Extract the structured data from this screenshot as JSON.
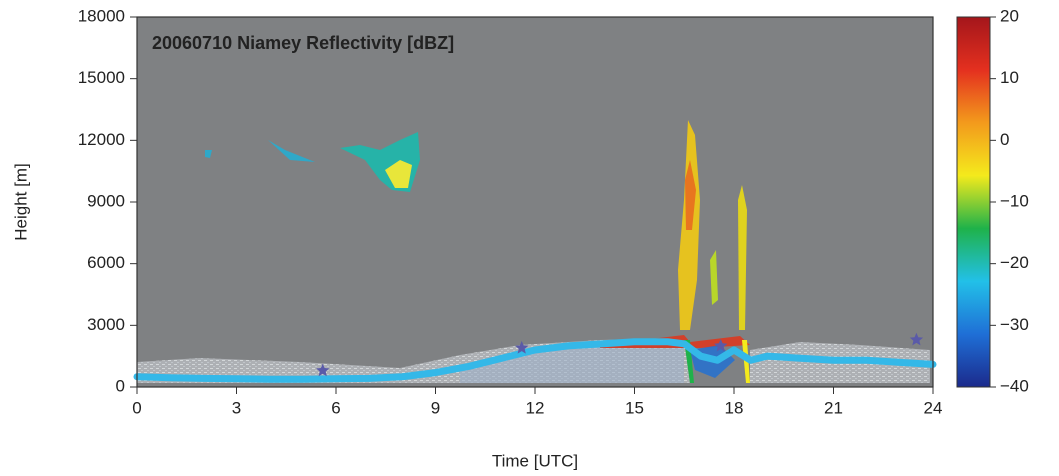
{
  "chart_data": {
    "type": "heatmap",
    "title": "20060710 Niamey Reflectivity [dBZ]",
    "xlabel": "Time [UTC]",
    "ylabel": "Height [m]",
    "xlim": [
      0,
      24
    ],
    "xticks": [
      0,
      3,
      6,
      9,
      12,
      15,
      18,
      21,
      24
    ],
    "ylim": [
      0,
      18000
    ],
    "yticks": [
      0,
      3000,
      6000,
      9000,
      12000,
      15000,
      18000
    ],
    "background": "#7f8183",
    "colorbar": {
      "lim": [
        -40,
        20
      ],
      "ticks": [
        {
          "value": -40,
          "label": "−40"
        },
        {
          "value": -30,
          "label": "−30"
        },
        {
          "value": -20,
          "label": "−20"
        },
        {
          "value": -10,
          "label": "−10"
        },
        0,
        10,
        20
      ],
      "colors": [
        "#1b2a8c",
        "#1f6fd6",
        "#22c0e8",
        "#1fb24a",
        "#f4ea1c",
        "#f39a1c",
        "#e4301f",
        "#a4161b"
      ]
    },
    "series": [
      {
        "type": "line",
        "color": "#34b8e8",
        "x": [
          0,
          1,
          2,
          3,
          4,
          5,
          6,
          7,
          8,
          9,
          10,
          11,
          12,
          13,
          14,
          15,
          16,
          16.5,
          17,
          17.5,
          18,
          18.5,
          19,
          20,
          21,
          22,
          23,
          24
        ],
        "values": [
          500,
          450,
          420,
          400,
          380,
          380,
          400,
          420,
          500,
          700,
          1000,
          1400,
          1800,
          2000,
          2100,
          2200,
          2200,
          2100,
          1500,
          1300,
          1800,
          1300,
          1500,
          1400,
          1300,
          1300,
          1200,
          1100
        ]
      },
      {
        "type": "scatter",
        "color": "#5a5aa8",
        "x": [
          5.6,
          11.6,
          17.6,
          23.5
        ],
        "values": [
          800,
          1900,
          2000,
          2300
        ]
      }
    ]
  }
}
